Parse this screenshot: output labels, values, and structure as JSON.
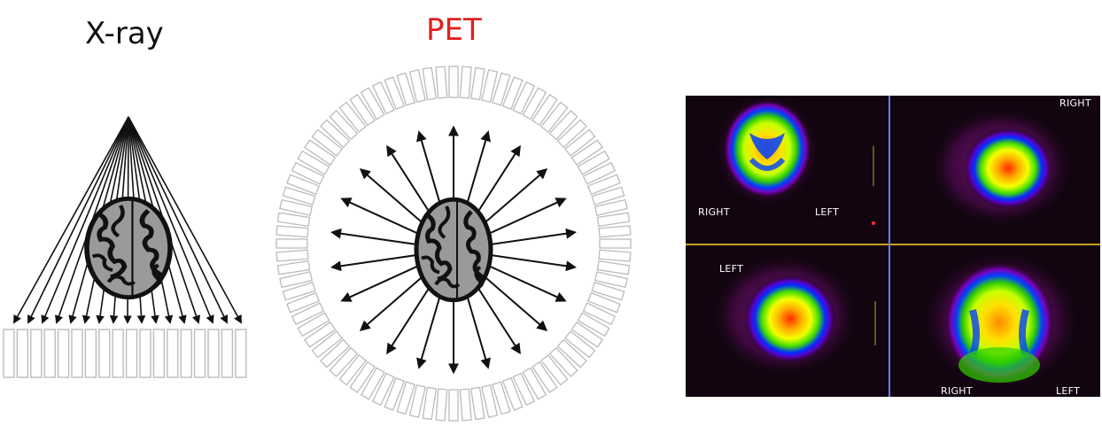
{
  "titles": {
    "xray": "X-ray",
    "pet": "PET"
  },
  "colors": {
    "pet_title": "#e02020",
    "scan_background": "#120510"
  },
  "pet_scan": {
    "labels": {
      "q1_right": "RIGHT",
      "q1_left": "LEFT",
      "q2_right": "RIGHT",
      "q3_left": "LEFT",
      "q4_right": "RIGHT",
      "q4_left": "LEFT"
    }
  }
}
